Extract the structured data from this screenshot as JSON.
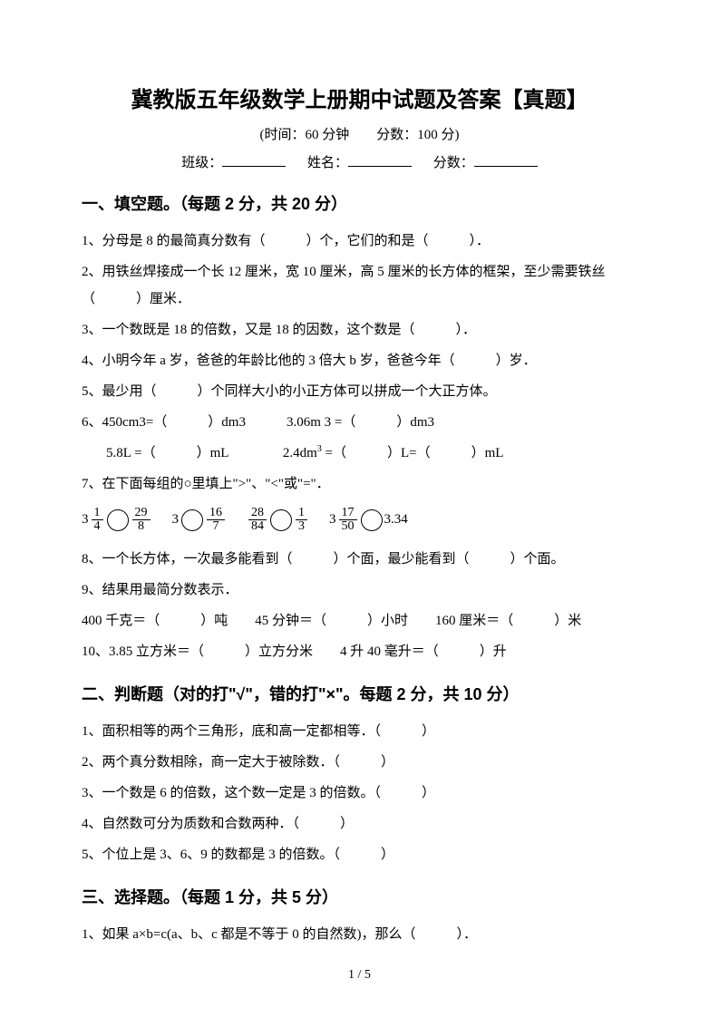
{
  "title": "冀教版五年级数学上册期中试题及答案【真题】",
  "subtitle": "(时间：60 分钟　　分数：100 分)",
  "info": {
    "class_label": "班级：",
    "name_label": "姓名：",
    "score_label": "分数："
  },
  "section1": {
    "heading": "一、填空题。（每题 2 分，共 20 分）",
    "q1": "1、分母是 8 的最简真分数有（　　　）个，它们的和是（　　　）．",
    "q2": "2、用铁丝焊接成一个长 12 厘米，宽 10 厘米，高 5 厘米的长方体的框架，至少需要铁丝（　　　）厘米．",
    "q3": "3、一个数既是 18 的倍数，又是 18 的因数，这个数是（　　　）．",
    "q4": "4、小明今年 a 岁，爸爸的年龄比他的 3 倍大 b 岁，爸爸今年（　　　）岁．",
    "q5": "5、最少用（　　　）个同样大小的小正方体可以拼成一个大正方体。",
    "q6a": "6、450cm3=（　　　）dm3　　　3.06m 3 =（　　　）dm3",
    "q6b": "　5.8L =（　　　）mL　　　　2.4dm",
    "q6b_after": " =（　　　）L=（　　　）mL",
    "q6b_sup": "3",
    "q7": "7、在下面每组的○里填上\">\"、\"<\"或\"=\"．",
    "cmp": {
      "g1": {
        "w1": "3",
        "n1": "1",
        "d1": "4",
        "n2": "29",
        "d2": "8"
      },
      "g2": {
        "w1": "3",
        "n2": "16",
        "d2": "7"
      },
      "g3": {
        "n1": "28",
        "d1": "84",
        "n2": "1",
        "d2": "3"
      },
      "g4": {
        "w1": "3",
        "n1": "17",
        "d1": "50",
        "r": "3.34"
      }
    },
    "q8": "8、一个长方体，一次最多能看到（　　　）个面，最少能看到（　　　）个面。",
    "q9a": "9、结果用最简分数表示．",
    "q9b": "400 千克＝（　　　）吨　　45 分钟＝（　　　）小时　　160 厘米＝（　　　）米",
    "q10": "10、3.85 立方米＝（　　　）立方分米　　4 升 40 毫升＝（　　　）升"
  },
  "section2": {
    "heading": "二、判断题（对的打\"√\"，错的打\"×\"。每题 2 分，共 10 分）",
    "q1": "1、面积相等的两个三角形，底和高一定都相等．（　　　）",
    "q2": "2、两个真分数相除，商一定大于被除数．（　　　）",
    "q3": "3、一个数是 6 的倍数，这个数一定是 3 的倍数。（　　　）",
    "q4": "4、自然数可分为质数和合数两种．（　　　）",
    "q5": "5、个位上是 3、6、9 的数都是 3 的倍数。（　　　）"
  },
  "section3": {
    "heading": "三、选择题。（每题 1 分，共 5 分）",
    "q1": "1、如果 a×b=c(a、b、c 都是不等于 0 的自然数)，那么（　　　）．"
  },
  "page_num": "1 / 5"
}
